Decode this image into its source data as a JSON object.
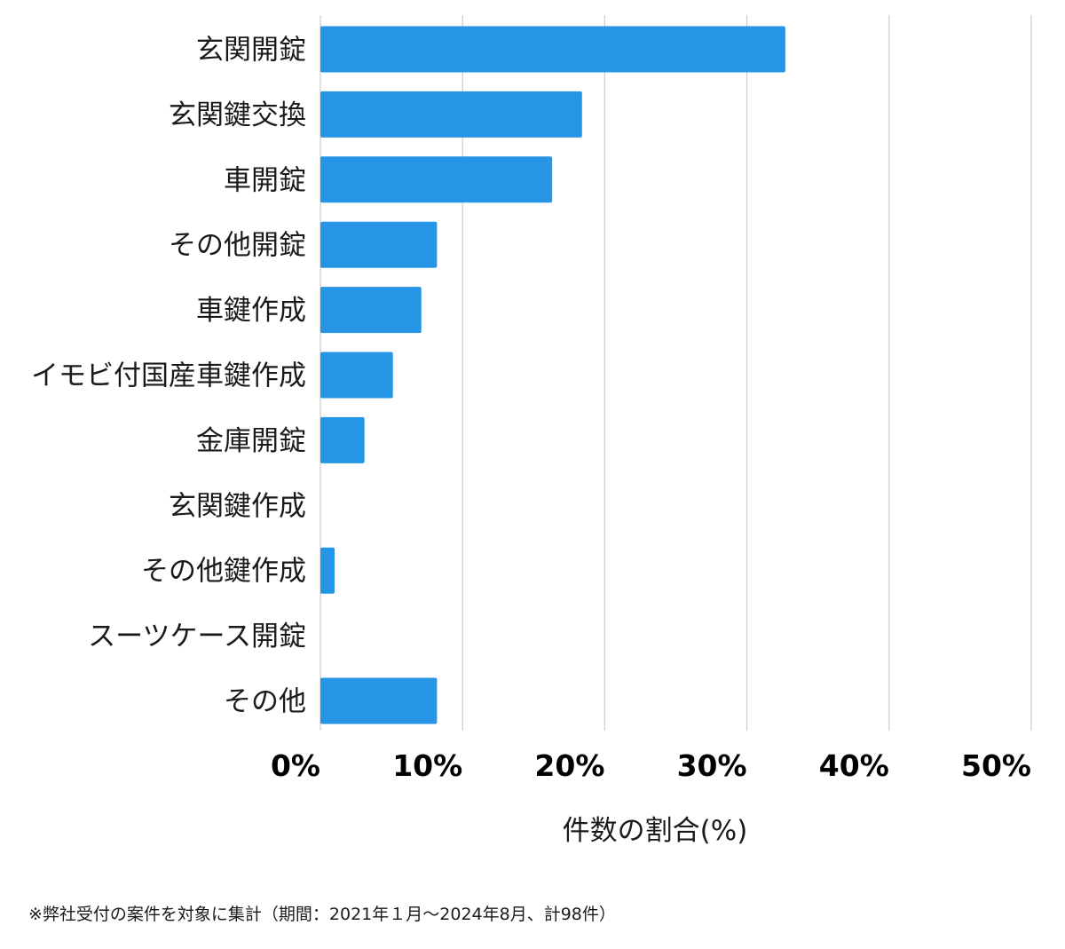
{
  "chart_data": {
    "type": "bar",
    "orientation": "horizontal",
    "categories": [
      "玄関開錠",
      "玄関鍵交換",
      "車開錠",
      "その他開錠",
      "車鍵作成",
      "イモビ付国産車鍵作成",
      "金庫開錠",
      "玄関鍵作成",
      "その他鍵作成",
      "スーツケース開錠",
      "その他"
    ],
    "values": [
      32.7,
      18.4,
      16.3,
      8.2,
      7.1,
      5.1,
      3.1,
      0,
      1.0,
      0,
      8.2
    ],
    "unit": "%",
    "xlabel": "件数の割合(%)",
    "ylabel": "",
    "xlim": [
      0,
      50
    ],
    "ticks": [
      0,
      10,
      20,
      30,
      40,
      50
    ],
    "tick_labels": [
      "0%",
      "10%",
      "20%",
      "30%",
      "40%",
      "50%"
    ],
    "grid": "vertical",
    "bar_color": "#2695e5",
    "grid_color": "#cccccc"
  },
  "footnote": "※弊社受付の案件を対象に集計（期間：2021年１月〜2024年8月、計98件）"
}
